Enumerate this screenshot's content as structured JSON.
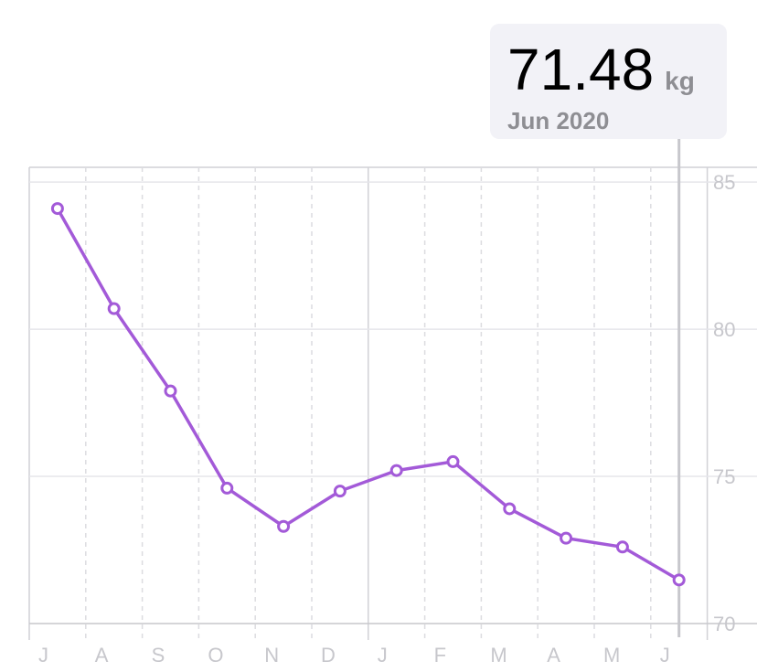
{
  "chart_data": {
    "type": "line",
    "categories": [
      "J",
      "A",
      "S",
      "O",
      "N",
      "D",
      "J",
      "F",
      "M",
      "A",
      "M",
      "J"
    ],
    "values": [
      84.1,
      80.7,
      77.9,
      74.6,
      73.3,
      74.5,
      75.2,
      75.5,
      73.9,
      72.9,
      72.6,
      71.48
    ],
    "color": "#a35ad8",
    "ylim": [
      70,
      85.5
    ],
    "yticks": [
      70,
      75,
      80,
      85
    ],
    "grid": true,
    "unit": "kg",
    "selected_label": "Jun 2020"
  }
}
